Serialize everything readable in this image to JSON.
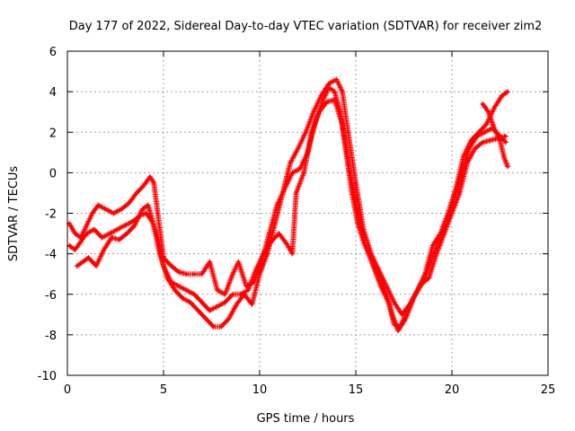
{
  "chart_data": {
    "type": "scatter",
    "title": "Day 177 of 2022, Sidereal Day-to-day VTEC variation (SDTVAR) for receiver zim2",
    "xlabel": "GPS time / hours",
    "ylabel": "SDTVAR / TECUs",
    "xlim": [
      0,
      25
    ],
    "ylim": [
      -10,
      6
    ],
    "x_ticks": [
      0,
      5,
      10,
      15,
      20,
      25
    ],
    "y_ticks": [
      -10,
      -8,
      -6,
      -4,
      -2,
      0,
      2,
      4,
      6
    ],
    "x_tick_labels": [
      "0",
      "5",
      "10",
      "15",
      "20",
      "25"
    ],
    "y_tick_labels": [
      "-10",
      "-8",
      "-6",
      "-4",
      "-2",
      "0",
      "2",
      "4",
      "6"
    ],
    "grid": true,
    "marker": "+",
    "color": "#ff0000",
    "series": [
      {
        "name": "track-1",
        "points": [
          [
            0.1,
            -2.5
          ],
          [
            0.4,
            -3.0
          ],
          [
            0.7,
            -3.2
          ],
          [
            1.0,
            -2.6
          ],
          [
            1.3,
            -2.0
          ],
          [
            1.6,
            -1.6
          ],
          [
            2.0,
            -1.8
          ],
          [
            2.4,
            -2.0
          ],
          [
            2.8,
            -1.8
          ],
          [
            3.2,
            -1.5
          ],
          [
            3.6,
            -1.0
          ],
          [
            4.0,
            -0.6
          ],
          [
            4.3,
            -0.2
          ],
          [
            4.5,
            -0.5
          ],
          [
            4.7,
            -2.0
          ],
          [
            5.0,
            -4.2
          ],
          [
            5.4,
            -4.6
          ],
          [
            5.8,
            -4.9
          ],
          [
            6.2,
            -5.0
          ],
          [
            6.6,
            -5.0
          ],
          [
            7.0,
            -5.0
          ],
          [
            7.4,
            -4.4
          ],
          [
            7.8,
            -5.8
          ],
          [
            8.2,
            -6.0
          ],
          [
            8.6,
            -5.0
          ],
          [
            8.9,
            -4.4
          ],
          [
            9.3,
            -5.6
          ],
          [
            9.7,
            -5.4
          ],
          [
            10.1,
            -4.4
          ],
          [
            10.5,
            -3.0
          ],
          [
            10.9,
            -1.6
          ],
          [
            11.3,
            -0.8
          ],
          [
            11.7,
            0.0
          ],
          [
            12.1,
            0.2
          ],
          [
            12.5,
            1.0
          ],
          [
            12.9,
            2.5
          ],
          [
            13.3,
            3.6
          ],
          [
            13.6,
            4.2
          ],
          [
            13.9,
            4.0
          ],
          [
            14.2,
            3.0
          ],
          [
            14.5,
            1.0
          ],
          [
            14.8,
            -1.0
          ],
          [
            15.1,
            -2.5
          ],
          [
            15.4,
            -3.4
          ],
          [
            15.8,
            -4.2
          ],
          [
            16.2,
            -5.0
          ],
          [
            16.6,
            -6.0
          ],
          [
            16.9,
            -7.0
          ],
          [
            17.2,
            -7.8
          ],
          [
            17.6,
            -7.2
          ],
          [
            18.0,
            -6.2
          ],
          [
            18.4,
            -5.5
          ],
          [
            18.8,
            -5.2
          ],
          [
            19.2,
            -4.0
          ],
          [
            19.6,
            -3.0
          ],
          [
            20.0,
            -2.0
          ],
          [
            20.4,
            -1.0
          ],
          [
            20.8,
            0.5
          ],
          [
            21.2,
            1.2
          ],
          [
            21.6,
            1.5
          ],
          [
            22.0,
            1.6
          ],
          [
            22.4,
            1.7
          ],
          [
            22.8,
            1.8
          ]
        ]
      },
      {
        "name": "track-2",
        "points": [
          [
            0.1,
            -3.6
          ],
          [
            0.4,
            -3.8
          ],
          [
            0.7,
            -3.4
          ],
          [
            1.0,
            -3.0
          ],
          [
            1.4,
            -2.8
          ],
          [
            1.8,
            -3.2
          ],
          [
            2.2,
            -3.0
          ],
          [
            2.6,
            -2.8
          ],
          [
            3.0,
            -2.6
          ],
          [
            3.4,
            -2.4
          ],
          [
            3.8,
            -2.1
          ],
          [
            4.1,
            -2.0
          ],
          [
            4.4,
            -2.4
          ],
          [
            4.7,
            -3.2
          ],
          [
            5.0,
            -4.6
          ],
          [
            5.4,
            -5.4
          ],
          [
            5.8,
            -5.6
          ],
          [
            6.2,
            -5.8
          ],
          [
            6.6,
            -6.0
          ],
          [
            7.0,
            -6.4
          ],
          [
            7.4,
            -6.8
          ],
          [
            7.8,
            -6.6
          ],
          [
            8.2,
            -6.4
          ],
          [
            8.6,
            -6.0
          ],
          [
            9.0,
            -6.0
          ],
          [
            9.4,
            -5.8
          ],
          [
            9.8,
            -4.8
          ],
          [
            10.2,
            -4.0
          ],
          [
            10.6,
            -3.4
          ],
          [
            11.0,
            -3.0
          ],
          [
            11.4,
            -3.5
          ],
          [
            11.7,
            -4.0
          ],
          [
            11.9,
            -1.0
          ],
          [
            12.3,
            0.0
          ],
          [
            12.7,
            2.0
          ],
          [
            13.1,
            3.0
          ],
          [
            13.5,
            3.5
          ],
          [
            13.9,
            3.6
          ],
          [
            14.3,
            2.4
          ],
          [
            14.7,
            0.0
          ],
          [
            15.1,
            -2.0
          ],
          [
            15.5,
            -3.6
          ],
          [
            15.9,
            -4.6
          ],
          [
            16.3,
            -5.6
          ],
          [
            16.7,
            -6.4
          ],
          [
            17.0,
            -7.5
          ],
          [
            17.3,
            -7.6
          ],
          [
            17.7,
            -6.8
          ],
          [
            18.1,
            -6.0
          ],
          [
            18.5,
            -5.4
          ],
          [
            18.9,
            -4.4
          ],
          [
            19.3,
            -3.4
          ],
          [
            19.7,
            -2.6
          ],
          [
            20.1,
            -1.4
          ],
          [
            20.5,
            0.0
          ],
          [
            20.9,
            1.2
          ],
          [
            21.3,
            1.8
          ],
          [
            21.7,
            2.0
          ],
          [
            22.1,
            2.2
          ],
          [
            22.5,
            1.8
          ],
          [
            22.8,
            1.5
          ]
        ]
      },
      {
        "name": "track-3",
        "points": [
          [
            0.5,
            -4.6
          ],
          [
            0.8,
            -4.4
          ],
          [
            1.1,
            -4.2
          ],
          [
            1.5,
            -4.6
          ],
          [
            1.9,
            -3.8
          ],
          [
            2.3,
            -3.2
          ],
          [
            2.7,
            -3.3
          ],
          [
            3.1,
            -3.0
          ],
          [
            3.5,
            -2.6
          ],
          [
            3.9,
            -1.8
          ],
          [
            4.2,
            -1.6
          ],
          [
            4.5,
            -2.6
          ],
          [
            4.8,
            -4.0
          ],
          [
            5.2,
            -5.2
          ],
          [
            5.6,
            -5.8
          ],
          [
            6.0,
            -6.2
          ],
          [
            6.4,
            -6.4
          ],
          [
            6.8,
            -6.8
          ],
          [
            7.2,
            -7.2
          ],
          [
            7.6,
            -7.6
          ],
          [
            8.0,
            -7.6
          ],
          [
            8.4,
            -7.2
          ],
          [
            8.8,
            -6.5
          ],
          [
            9.2,
            -6.0
          ],
          [
            9.6,
            -6.5
          ],
          [
            10.0,
            -5.0
          ],
          [
            10.4,
            -4.0
          ],
          [
            10.8,
            -2.5
          ],
          [
            11.2,
            -1.0
          ],
          [
            11.6,
            0.5
          ],
          [
            12.0,
            1.2
          ],
          [
            12.4,
            2.0
          ],
          [
            12.8,
            3.0
          ],
          [
            13.2,
            3.8
          ],
          [
            13.6,
            4.4
          ],
          [
            14.0,
            4.6
          ],
          [
            14.3,
            4.0
          ],
          [
            14.6,
            2.0
          ],
          [
            15.0,
            -0.5
          ],
          [
            15.4,
            -2.8
          ],
          [
            15.8,
            -4.0
          ],
          [
            16.2,
            -4.8
          ],
          [
            16.6,
            -5.6
          ],
          [
            17.0,
            -6.4
          ],
          [
            17.4,
            -7.0
          ],
          [
            17.8,
            -6.5
          ],
          [
            18.2,
            -5.8
          ],
          [
            18.6,
            -5.0
          ],
          [
            19.0,
            -3.6
          ],
          [
            19.4,
            -3.0
          ],
          [
            19.8,
            -2.0
          ],
          [
            20.2,
            -0.8
          ],
          [
            20.6,
            0.8
          ],
          [
            21.0,
            1.6
          ],
          [
            21.4,
            2.0
          ],
          [
            21.8,
            2.4
          ],
          [
            22.2,
            3.2
          ],
          [
            22.6,
            3.8
          ],
          [
            22.9,
            4.0
          ]
        ]
      },
      {
        "name": "track-4",
        "points": [
          [
            21.6,
            3.4
          ],
          [
            21.9,
            3.0
          ],
          [
            22.2,
            2.2
          ],
          [
            22.5,
            1.6
          ],
          [
            22.7,
            0.8
          ],
          [
            22.9,
            0.3
          ]
        ]
      }
    ]
  }
}
